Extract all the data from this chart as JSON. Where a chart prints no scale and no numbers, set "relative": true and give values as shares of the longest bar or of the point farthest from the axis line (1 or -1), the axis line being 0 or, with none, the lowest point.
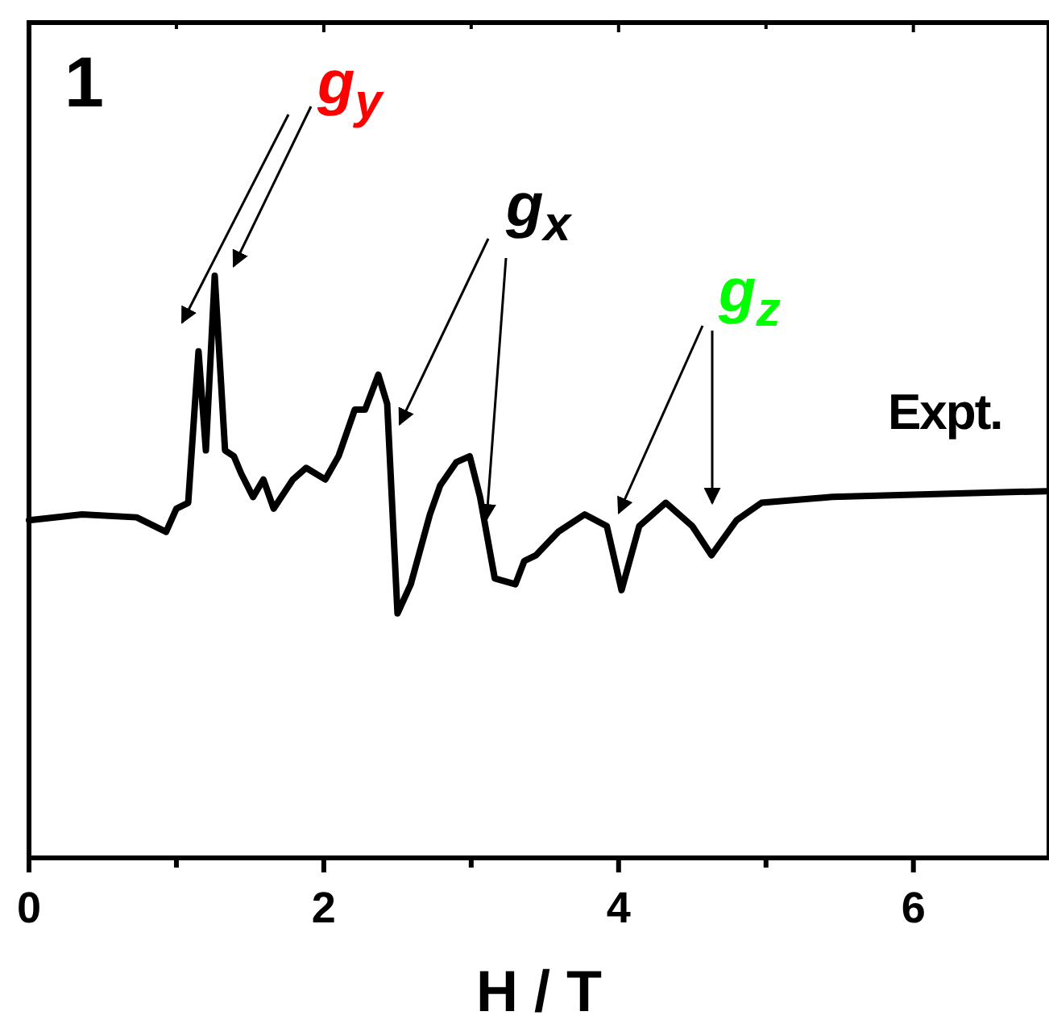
{
  "chart_data": {
    "type": "line",
    "relative": true,
    "xlabel": "H / T",
    "xlim": [
      0,
      6.92
    ],
    "xticks": [
      0,
      {
        "value": 1,
        "label": null
      },
      2,
      {
        "value": 3,
        "label": null
      },
      4,
      {
        "value": 5,
        "label": null
      },
      6
    ],
    "annotations": [
      "1",
      "g$_{y}$",
      "g$_{x}$",
      "g$_{z}$",
      "Expt."
    ],
    "series": [
      {
        "color": "#000000",
        "x": [
          0,
          0.36,
          0.73,
          0.93,
          1.0,
          1.08,
          1.15,
          1.2,
          1.26,
          1.33,
          1.39,
          1.44,
          1.52,
          1.59,
          1.66,
          1.79,
          1.88,
          2.01,
          2.1,
          2.21,
          2.28,
          2.37,
          2.43,
          2.5,
          2.59,
          2.72,
          2.79,
          2.9,
          2.99,
          3.06,
          3.16,
          3.3,
          3.36,
          3.44,
          3.59,
          3.77,
          3.92,
          4.02,
          4.14,
          4.32,
          4.5,
          4.63,
          4.8,
          4.97,
          5.45,
          6.9
        ],
        "values": [
          0.58,
          0.59,
          0.585,
          0.56,
          0.6,
          0.61,
          0.87,
          0.7,
          1.0,
          0.7,
          0.69,
          0.66,
          0.62,
          0.65,
          0.6,
          0.65,
          0.67,
          0.65,
          0.69,
          0.77,
          0.77,
          0.83,
          0.78,
          0.42,
          0.47,
          0.59,
          0.64,
          0.68,
          0.69,
          0.62,
          0.48,
          0.47,
          0.51,
          0.52,
          0.56,
          0.59,
          0.57,
          0.46,
          0.57,
          0.61,
          0.57,
          0.52,
          0.58,
          0.61,
          0.62,
          0.63
        ]
      }
    ],
    "marker": "none",
    "line_style": "solid",
    "grid": false
  }
}
